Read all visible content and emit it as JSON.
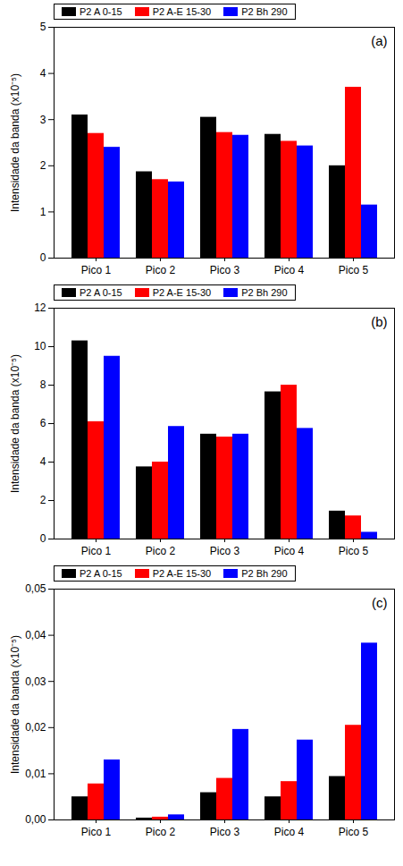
{
  "chart_data": [
    {
      "type": "bar",
      "title": "(a)",
      "ylabel": "Intensidade da banda (x10⁻⁵)",
      "categories": [
        "Pico 1",
        "Pico 2",
        "Pico 3",
        "Pico 4",
        "Pico 5"
      ],
      "series": [
        {
          "name": "P2 A 0-15",
          "color": "#000000",
          "values": [
            3.1,
            1.87,
            3.05,
            2.68,
            2.0
          ]
        },
        {
          "name": "P2 A-E 15-30",
          "color": "#ff0000",
          "values": [
            2.7,
            1.7,
            2.72,
            2.53,
            3.7
          ]
        },
        {
          "name": "P2 Bh 290",
          "color": "#0000ff",
          "values": [
            2.4,
            1.65,
            2.66,
            2.43,
            1.15
          ]
        }
      ],
      "ylim": [
        0,
        5
      ],
      "yticks": [
        0,
        1,
        2,
        3,
        4,
        5
      ],
      "grid": false,
      "legend": "top-left"
    },
    {
      "type": "bar",
      "title": "(b)",
      "ylabel": "Intensidade da banda (x10⁻⁵)",
      "categories": [
        "Pico 1",
        "Pico 2",
        "Pico 3",
        "Pico 4",
        "Pico 5"
      ],
      "series": [
        {
          "name": "P2 A 0-15",
          "color": "#000000",
          "values": [
            10.3,
            3.75,
            5.45,
            7.65,
            1.45
          ]
        },
        {
          "name": "P2 A-E 15-30",
          "color": "#ff0000",
          "values": [
            6.1,
            4.0,
            5.3,
            8.0,
            1.2
          ]
        },
        {
          "name": "P2 Bh 290",
          "color": "#0000ff",
          "values": [
            9.5,
            5.85,
            5.45,
            5.75,
            0.35
          ]
        }
      ],
      "ylim": [
        0,
        12
      ],
      "yticks": [
        0,
        2,
        4,
        6,
        8,
        10,
        12
      ],
      "grid": false,
      "legend": "top-left"
    },
    {
      "type": "bar",
      "title": "(c)",
      "ylabel": "Intensidade da banda (x10⁻⁵)",
      "categories": [
        "Pico 1",
        "Pico 2",
        "Pico 3",
        "Pico 4",
        "Pico 5"
      ],
      "series": [
        {
          "name": "P2 A 0-15",
          "color": "#000000",
          "values": [
            0.005,
            0.0004,
            0.0059,
            0.005,
            0.0094
          ]
        },
        {
          "name": "P2 A-E 15-30",
          "color": "#ff0000",
          "values": [
            0.0078,
            0.0006,
            0.009,
            0.0083,
            0.0205
          ]
        },
        {
          "name": "P2 Bh 290",
          "color": "#0000ff",
          "values": [
            0.013,
            0.0011,
            0.0196,
            0.0173,
            0.0383
          ]
        }
      ],
      "ylim": [
        0,
        0.05
      ],
      "yticks": [
        {
          "value": 0,
          "label": "0,00"
        },
        {
          "value": 0.01,
          "label": "0,01"
        },
        {
          "value": 0.02,
          "label": "0,02"
        },
        {
          "value": 0.03,
          "label": "0,03"
        },
        {
          "value": 0.04,
          "label": "0,04"
        },
        {
          "value": 0.05,
          "label": "0,05"
        }
      ],
      "grid": false,
      "legend": "top-left"
    }
  ]
}
